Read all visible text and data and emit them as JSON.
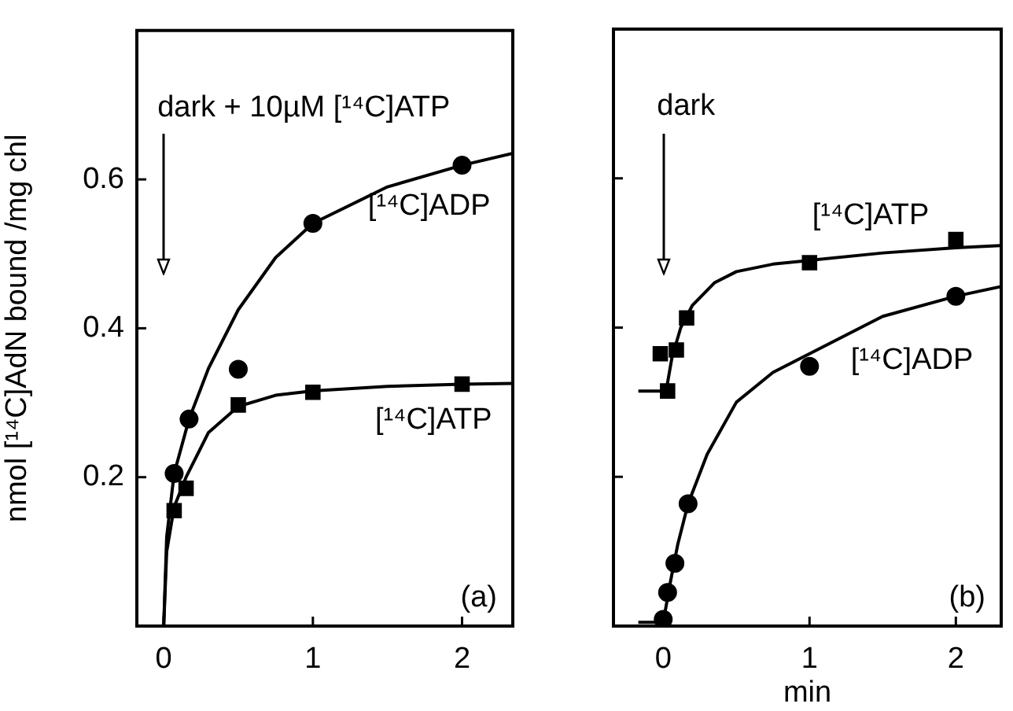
{
  "chart_data": [
    {
      "type": "scatter",
      "ylabel": "nmol [¹⁴C]AdN bound /mg chl",
      "xlim": [
        -0.18,
        2.34
      ],
      "xticks": [
        0,
        1,
        2
      ],
      "ylim": [
        0,
        0.8
      ],
      "yticks": [
        0.2,
        0.4,
        0.6
      ],
      "grid": false,
      "legend": false,
      "annotations": [
        "dark + 10µM [¹⁴C]ATP",
        "(a)"
      ],
      "series": [
        {
          "name": "[¹⁴C]ADP",
          "color": "#000000",
          "marker": "circle",
          "x": [
            0.07,
            0.17,
            0.5,
            1,
            2
          ],
          "values": [
            0.205,
            0.278,
            0.345,
            0.541,
            0.619
          ]
        },
        {
          "name": "[¹⁴C]ATP",
          "color": "#000000",
          "marker": "square",
          "x": [
            0.07,
            0.15,
            0.5,
            1,
            2
          ],
          "values": [
            0.155,
            0.185,
            0.297,
            0.314,
            0.325
          ]
        },
        {
          "type": "line",
          "color": "#000000",
          "marker": "none",
          "x": [
            0,
            0.02,
            0.07,
            0.17,
            0.3,
            0.5,
            0.75,
            1,
            1.5,
            2,
            2.34
          ],
          "values": [
            0,
            0.12,
            0.205,
            0.278,
            0.346,
            0.425,
            0.495,
            0.541,
            0.59,
            0.619,
            0.635
          ]
        },
        {
          "type": "line",
          "color": "#000000",
          "marker": "none",
          "x": [
            0,
            0.02,
            0.07,
            0.15,
            0.3,
            0.5,
            0.75,
            1,
            1.5,
            2,
            2.34
          ],
          "values": [
            0,
            0.1,
            0.16,
            0.2,
            0.26,
            0.295,
            0.31,
            0.316,
            0.322,
            0.325,
            0.326
          ]
        }
      ]
    },
    {
      "type": "scatter",
      "xlabel": "min",
      "xlim": [
        -0.34,
        2.31
      ],
      "xticks": [
        0,
        1,
        2
      ],
      "ylim": [
        0,
        0.8
      ],
      "yticks": [
        {
          "value": 0.2,
          "label": null
        },
        {
          "value": 0.4,
          "label": null
        },
        {
          "value": 0.6,
          "label": null
        }
      ],
      "tick_labels": "x",
      "grid": false,
      "legend": false,
      "annotations": [
        "dark",
        "(b)"
      ],
      "series": [
        {
          "name": "[¹⁴C]ADP",
          "color": "#000000",
          "marker": "circle",
          "x": [
            0,
            0.03,
            0.08,
            0.17,
            1,
            2
          ],
          "values": [
            0.009,
            0.045,
            0.084,
            0.164,
            0.348,
            0.442
          ]
        },
        {
          "name": "[¹⁴C]ATP",
          "color": "#000000",
          "marker": "square",
          "x": [
            -0.02,
            0.03,
            0.09,
            0.16,
            1,
            2
          ],
          "values": [
            0.365,
            0.315,
            0.37,
            0.413,
            0.487,
            0.518
          ]
        },
        {
          "type": "line",
          "color": "#000000",
          "marker": "none",
          "x": [
            -0.17,
            0,
            0.05,
            0.1,
            0.17,
            0.3,
            0.5,
            0.75,
            1,
            1.5,
            2,
            2.31
          ],
          "values": [
            0.005,
            0.005,
            0.06,
            0.11,
            0.164,
            0.23,
            0.3,
            0.34,
            0.365,
            0.415,
            0.442,
            0.455
          ]
        },
        {
          "type": "line",
          "color": "#000000",
          "marker": "none",
          "x": [
            -0.17,
            0.02,
            0.06,
            0.12,
            0.2,
            0.35,
            0.5,
            0.75,
            1,
            1.5,
            2,
            2.31
          ],
          "values": [
            0.315,
            0.315,
            0.36,
            0.4,
            0.43,
            0.46,
            0.475,
            0.485,
            0.49,
            0.5,
            0.507,
            0.51
          ]
        }
      ]
    }
  ]
}
